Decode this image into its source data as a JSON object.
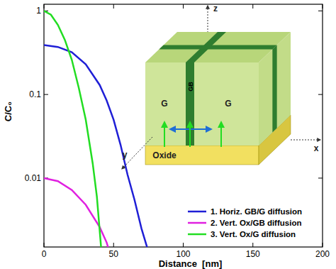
{
  "chart_data": {
    "type": "line",
    "x_label": "Distance  [nm]",
    "y_label": "C/C₀",
    "log": "y",
    "legend": "lower right",
    "xlim": [
      0,
      200
    ],
    "xticks": [
      0,
      50,
      100,
      150,
      200
    ],
    "ylim": [
      0.0015,
      1.2
    ],
    "yticks": [
      0.01,
      0.1,
      1
    ],
    "annotations": [
      "G",
      "G",
      "GB",
      "Oxide",
      "x",
      "y",
      "z"
    ],
    "series": [
      {
        "name": "1. Horiz. GB/G diffusion",
        "color": "#1f1fd6",
        "x": [
          0,
          10,
          20,
          30,
          40,
          45,
          50,
          55,
          60,
          65,
          70,
          74
        ],
        "values": [
          0.39,
          0.37,
          0.32,
          0.23,
          0.13,
          0.085,
          0.05,
          0.025,
          0.011,
          0.0055,
          0.0025,
          0.0015
        ]
      },
      {
        "name": "2. Vert. Ox/GB diffusion",
        "color": "#e020e0",
        "x": [
          0,
          10,
          20,
          30,
          40,
          45,
          46
        ],
        "values": [
          0.01,
          0.0092,
          0.0072,
          0.0048,
          0.0026,
          0.0017,
          0.0015
        ]
      },
      {
        "name": "3. Vert. Ox/G diffusion",
        "color": "#22dd22",
        "x": [
          0,
          5,
          10,
          15,
          20,
          25,
          30,
          35,
          38,
          41
        ],
        "values": [
          1,
          0.9,
          0.68,
          0.45,
          0.26,
          0.12,
          0.05,
          0.015,
          0.006,
          0.0015
        ]
      }
    ]
  }
}
